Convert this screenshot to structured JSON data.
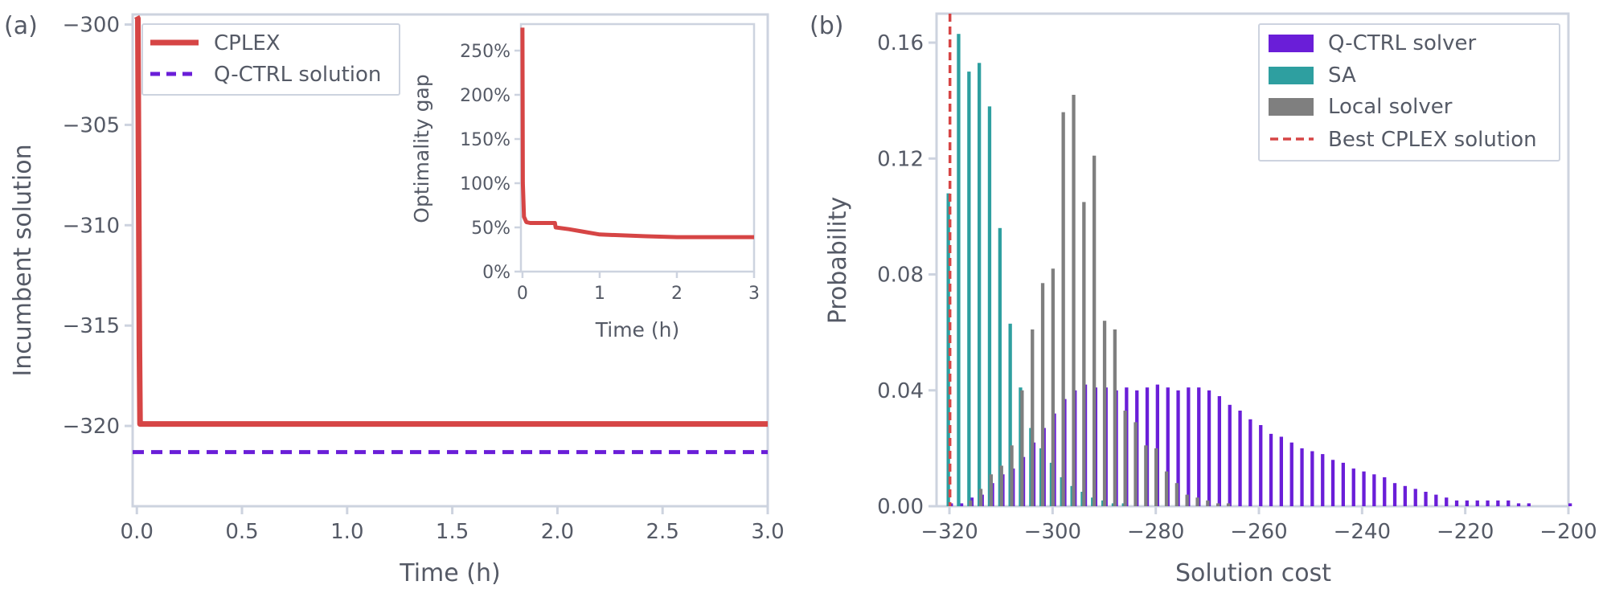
{
  "panel_a": {
    "panel_label": "(a)",
    "xlabel": "Time (h)",
    "ylabel": "Incumbent solution",
    "xticks": [
      "0.0",
      "0.5",
      "1.0",
      "1.5",
      "2.0",
      "2.5",
      "3.0"
    ],
    "yticks": [
      "−300",
      "−305",
      "−310",
      "−315",
      "−320"
    ],
    "legend": [
      "CPLEX",
      "Q-CTRL solution"
    ],
    "inset": {
      "xlabel": "Time (h)",
      "ylabel": "Optimality gap",
      "xticks": [
        "0",
        "1",
        "2",
        "3"
      ],
      "yticks": [
        "0%",
        "50%",
        "100%",
        "150%",
        "200%",
        "250%"
      ]
    }
  },
  "panel_b": {
    "panel_label": "(b)",
    "xlabel": "Solution cost",
    "ylabel": "Probability",
    "xticks": [
      "−320",
      "−300",
      "−280",
      "−260",
      "−240",
      "−220",
      "−200"
    ],
    "yticks": [
      "0.00",
      "0.04",
      "0.08",
      "0.12",
      "0.16"
    ],
    "legend": [
      "Q-CTRL solver",
      "SA",
      "Local solver",
      "Best CPLEX solution"
    ]
  },
  "colors": {
    "cplex": "#d64545",
    "qctrl": "#6a1ed8",
    "sa": "#2e9fa0",
    "local": "#7f7f7f",
    "axis": "#cdd3df",
    "text": "#555a66"
  },
  "chart_data": [
    {
      "type": "line",
      "panel": "a",
      "xlabel": "Time (h)",
      "ylabel": "Incumbent solution",
      "xlim": [
        -0.02,
        3.0
      ],
      "ylim": [
        -324,
        -299.5
      ],
      "series": [
        {
          "name": "CPLEX",
          "style": "solid",
          "x": [
            0.0,
            0.0,
            0.005,
            0.012,
            0.015,
            0.2,
            0.5,
            1.0,
            1.5,
            2.0,
            2.5,
            3.0
          ],
          "y": [
            -299.6,
            -299.6,
            -299.7,
            -316.0,
            -319.9,
            -319.9,
            -319.9,
            -319.9,
            -319.9,
            -319.9,
            -319.9,
            -319.9
          ]
        },
        {
          "name": "Q-CTRL solution",
          "style": "dashed",
          "x": [
            -0.02,
            3.0
          ],
          "y": [
            -321.3,
            -321.3
          ]
        }
      ],
      "inset": {
        "type": "line",
        "xlabel": "Time (h)",
        "ylabel": "Optimality gap",
        "xlim": [
          -0.02,
          3.0
        ],
        "ylim": [
          0,
          280
        ],
        "series": [
          {
            "name": "CPLEX",
            "x": [
              0.0,
              0.005,
              0.02,
              0.05,
              0.1,
              0.2,
              0.42,
              0.43,
              0.6,
              0.8,
              1.0,
              1.3,
              1.6,
              2.0,
              2.5,
              3.0
            ],
            "y": [
              276,
              100,
              62,
              56,
              55,
              55,
              55,
              50,
              48,
              45,
              42,
              41,
              40,
              39,
              39,
              39
            ]
          }
        ]
      }
    },
    {
      "type": "bar",
      "panel": "b",
      "xlabel": "Solution cost",
      "ylabel": "Probability",
      "xlim": [
        -322.5,
        -200
      ],
      "ylim": [
        0,
        0.17
      ],
      "x": [
        -320,
        -318,
        -316,
        -314,
        -312,
        -310,
        -308,
        -306,
        -304,
        -302,
        -300,
        -298,
        -296,
        -294,
        -292,
        -290,
        -288,
        -286,
        -284,
        -282,
        -280,
        -278,
        -276,
        -274,
        -272,
        -270,
        -268,
        -266,
        -264,
        -262,
        -260,
        -258,
        -256,
        -254,
        -252,
        -250,
        -248,
        -246,
        -244,
        -242,
        -240,
        -238,
        -236,
        -234,
        -232,
        -230,
        -228,
        -226,
        -224,
        -222,
        -220,
        -218,
        -216,
        -214,
        -212,
        -210,
        -208,
        -206,
        -204,
        -202,
        -200
      ],
      "series": [
        {
          "name": "Q-CTRL solver",
          "values": [
            0.001,
            0.001,
            0.003,
            0.004,
            0.008,
            0.011,
            0.013,
            0.017,
            0.022,
            0.027,
            0.032,
            0.037,
            0.04,
            0.042,
            0.041,
            0.041,
            0.04,
            0.041,
            0.04,
            0.041,
            0.042,
            0.041,
            0.04,
            0.041,
            0.041,
            0.04,
            0.038,
            0.035,
            0.033,
            0.03,
            0.028,
            0.025,
            0.024,
            0.022,
            0.02,
            0.019,
            0.018,
            0.016,
            0.015,
            0.013,
            0.012,
            0.011,
            0.01,
            0.008,
            0.007,
            0.006,
            0.005,
            0.004,
            0.003,
            0.002,
            0.002,
            0.002,
            0.002,
            0.002,
            0.002,
            0.001,
            0.001,
            0.0,
            0.0,
            0.0,
            0.001
          ]
        },
        {
          "name": "SA",
          "values": [
            0.108,
            0.163,
            0.15,
            0.153,
            0.138,
            0.096,
            0.063,
            0.041,
            0.027,
            0.02,
            0.015,
            0.01,
            0.007,
            0.005,
            0.003,
            0.002,
            0.001,
            0.001,
            0.0,
            0.0,
            0.0,
            0.0,
            0.0,
            0.0,
            0.0,
            0.0,
            0.0,
            0.0,
            0.0,
            0.0,
            0.0,
            0.0,
            0.0,
            0.0,
            0.0,
            0.0,
            0.0,
            0.0,
            0.0,
            0.0,
            0.0,
            0.0,
            0.0,
            0.0,
            0.0,
            0.0,
            0.0,
            0.0,
            0.0,
            0.0,
            0.0,
            0.0,
            0.0,
            0.0,
            0.0,
            0.0,
            0.0,
            0.0,
            0.0,
            0.0,
            0.0
          ]
        },
        {
          "name": "Local solver",
          "values": [
            0.0,
            0.0,
            0.002,
            0.006,
            0.011,
            0.014,
            0.021,
            0.04,
            0.061,
            0.077,
            0.082,
            0.136,
            0.142,
            0.105,
            0.121,
            0.064,
            0.061,
            0.033,
            0.029,
            0.021,
            0.02,
            0.012,
            0.008,
            0.004,
            0.003,
            0.002,
            0.001,
            0.001,
            0.0,
            0.0,
            0.0,
            0.0,
            0.0,
            0.0,
            0.0,
            0.0,
            0.0,
            0.0,
            0.0,
            0.0,
            0.0,
            0.0,
            0.0,
            0.0,
            0.0,
            0.0,
            0.0,
            0.0,
            0.0,
            0.0,
            0.0,
            0.0,
            0.0,
            0.0,
            0.0,
            0.0,
            0.0,
            0.0,
            0.0,
            0.0,
            0.0
          ]
        }
      ],
      "reference_lines": [
        {
          "name": "Best CPLEX solution",
          "x": -319.9,
          "style": "dashed"
        }
      ]
    }
  ]
}
